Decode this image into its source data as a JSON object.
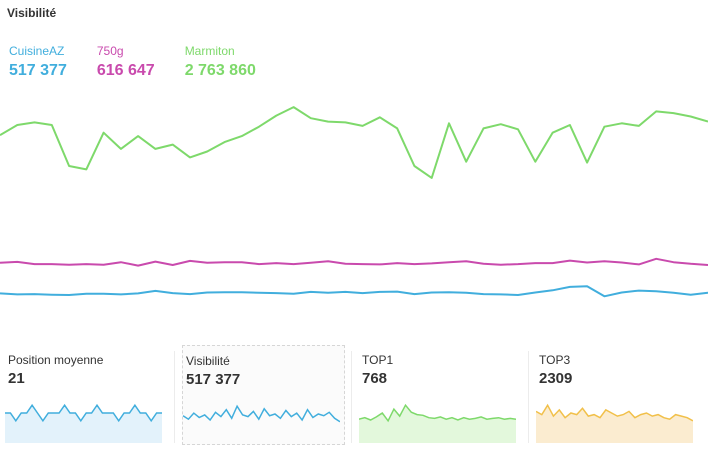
{
  "page": {
    "title": "Visibilité"
  },
  "colors": {
    "cuisineaz": "#41aedd",
    "g750": "#c94aad",
    "marmiton": "#7ed96b",
    "top3": "#f1c04a"
  },
  "chart_data": {
    "type": "line",
    "title": "Visibilité",
    "series": [
      {
        "name": "CuisineAZ",
        "display_value": "517 377",
        "color": "#41aedd",
        "values": [
          517,
          514,
          515,
          513,
          512,
          516,
          516,
          514,
          517,
          525,
          518,
          515,
          520,
          521,
          521,
          519,
          518,
          516,
          522,
          519,
          522,
          518,
          522,
          523,
          515,
          520,
          521,
          519,
          515,
          514,
          512,
          520,
          527,
          538,
          540,
          508,
          520,
          526,
          524,
          519,
          513,
          519
        ]
      },
      {
        "name": "750g",
        "display_value": "616 647",
        "color": "#c94aad",
        "values": [
          615,
          618,
          611,
          611,
          609,
          611,
          609,
          617,
          606,
          619,
          608,
          621,
          615,
          617,
          617,
          611,
          614,
          611,
          615,
          620,
          612,
          611,
          610,
          614,
          611,
          613,
          617,
          620,
          612,
          609,
          611,
          614,
          614,
          622,
          616,
          620,
          616,
          610,
          628,
          617,
          612,
          608
        ]
      },
      {
        "name": "Marmiton",
        "display_value": "2 763 860",
        "color": "#7ed96b",
        "values": [
          2763,
          2775,
          2778,
          2775,
          2727,
          2723,
          2766,
          2747,
          2762,
          2747,
          2752,
          2737,
          2744,
          2755,
          2762,
          2773,
          2786,
          2796,
          2783,
          2779,
          2778,
          2774,
          2784,
          2771,
          2727,
          2713,
          2777,
          2732,
          2771,
          2776,
          2770,
          2732,
          2766,
          2775,
          2731,
          2773,
          2777,
          2774,
          2791,
          2789,
          2785,
          2779
        ]
      }
    ],
    "grid": false,
    "legend_position": "top-left"
  },
  "metrics": [
    {
      "label": "Position moyenne",
      "value": "21",
      "color": "#41aedd",
      "fill": "#e3f2fb",
      "spark": [
        21,
        21,
        20.9,
        21,
        21,
        21.1,
        21,
        20.9,
        21,
        21,
        21,
        21.1,
        21,
        21,
        20.9,
        21,
        21,
        21.1,
        21,
        21,
        21,
        20.9,
        21,
        21,
        21.1,
        21,
        21,
        20.9,
        21,
        21
      ]
    },
    {
      "label": "Visibilité",
      "value": "517 377",
      "color": "#41aedd",
      "fill": "none",
      "spark": [
        519,
        515,
        522,
        517,
        520,
        514,
        523,
        518,
        526,
        516,
        530,
        520,
        518,
        524,
        515,
        527,
        519,
        521,
        516,
        525,
        518,
        522,
        514,
        526,
        517,
        521,
        519,
        523,
        516,
        512
      ]
    },
    {
      "label": "TOP1",
      "value": "768",
      "color": "#7ed96b",
      "fill": "#e3f8dc",
      "spark": [
        767,
        769,
        766,
        770,
        775,
        765,
        780,
        771,
        785,
        776,
        773,
        772,
        769,
        768,
        770,
        767,
        769,
        766,
        769,
        767,
        768,
        770,
        767,
        768,
        769,
        767,
        768,
        767
      ]
    },
    {
      "label": "TOP3",
      "value": "2309",
      "color": "#f1c04a",
      "fill": "#fbecd0",
      "spark": [
        2312,
        2310,
        2316,
        2309,
        2313,
        2308,
        2311,
        2310,
        2314,
        2309,
        2310,
        2308,
        2313,
        2311,
        2309,
        2310,
        2312,
        2308,
        2310,
        2311,
        2309,
        2310,
        2308,
        2307,
        2310,
        2309,
        2308,
        2306
      ]
    }
  ]
}
